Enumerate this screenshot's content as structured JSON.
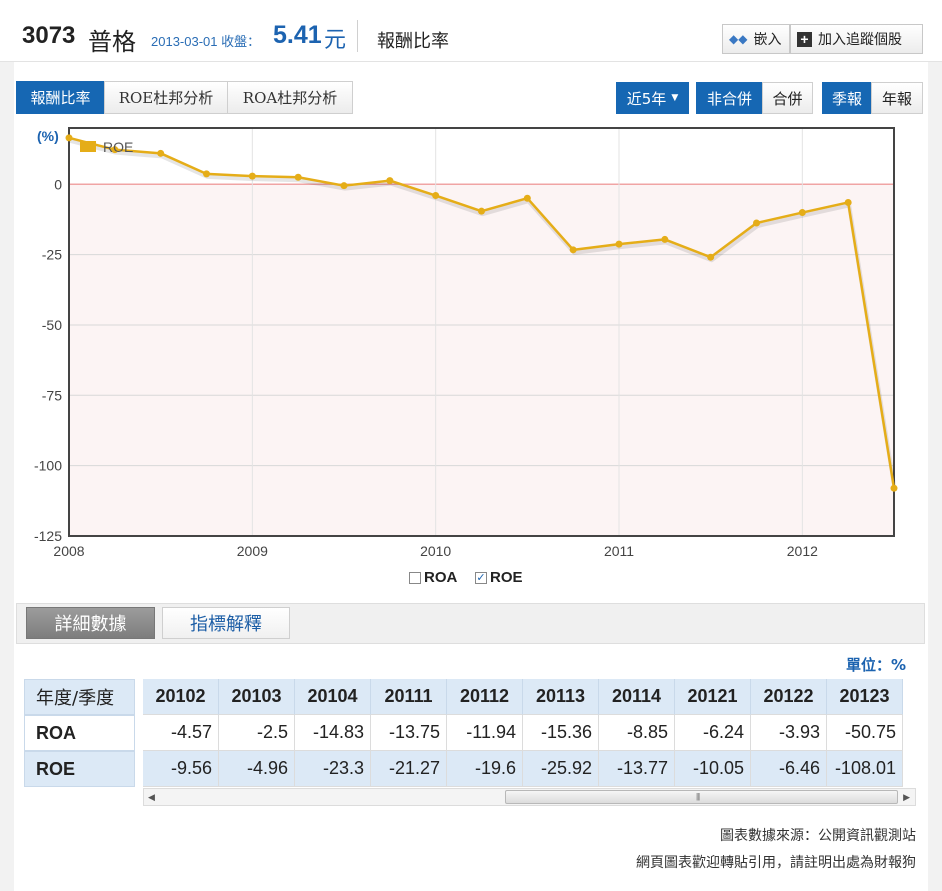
{
  "header": {
    "code": "3073",
    "name": "普格",
    "date_label": "2013-03-01 收盤：",
    "price": "5.41",
    "price_unit": "元",
    "page_title": "報酬比率",
    "embed_label": "嵌入",
    "follow_label": "加入追蹤個股"
  },
  "tabs": [
    "報酬比率",
    "ROE杜邦分析",
    "ROA杜邦分析"
  ],
  "controls": {
    "period": "近5年",
    "non_consolidated": "非合併",
    "consolidated": "合併",
    "quarterly": "季報",
    "annual": "年報"
  },
  "chart_data": {
    "type": "line",
    "ylabel": "(%)",
    "ylim": [
      -125,
      20
    ],
    "yticks": [
      0,
      -25,
      -50,
      -75,
      -100,
      -125
    ],
    "xlim": [
      2008.0,
      2012.5
    ],
    "xticks": [
      "2008",
      "2009",
      "2010",
      "2011",
      "2012"
    ],
    "legend": "top-left",
    "series": [
      {
        "name": "ROE",
        "color": "#e5ad18",
        "x": [
          2008.0,
          2008.25,
          2008.5,
          2008.75,
          2009.0,
          2009.25,
          2009.5,
          2009.75,
          2010.0,
          2010.25,
          2010.5,
          2010.75,
          2011.0,
          2011.25,
          2011.5,
          2011.75,
          2012.0,
          2012.25,
          2012.5
        ],
        "values": [
          16.5,
          12.3,
          11.0,
          3.7,
          2.9,
          2.5,
          -0.5,
          1.3,
          -4.0,
          -9.56,
          -4.96,
          -23.3,
          -21.27,
          -19.6,
          -25.92,
          -13.77,
          -10.05,
          -6.46,
          -108.01
        ]
      }
    ]
  },
  "legend_toggles": {
    "roa": "ROA",
    "roe": "ROE"
  },
  "detail": {
    "detail_button": "詳細數據",
    "explain_button": "指標解釋",
    "unit": "單位：%"
  },
  "table": {
    "corner": "年度/季度",
    "row_labels": [
      "ROA",
      "ROE"
    ],
    "periods": [
      "20102",
      "20103",
      "20104",
      "20111",
      "20112",
      "20113",
      "20114",
      "20121",
      "20122",
      "20123"
    ],
    "roa": [
      "-4.57",
      "-2.5",
      "-14.83",
      "-13.75",
      "-11.94",
      "-15.36",
      "-8.85",
      "-6.24",
      "-3.93",
      "-50.75"
    ],
    "roe": [
      "-9.56",
      "-4.96",
      "-23.3",
      "-21.27",
      "-19.6",
      "-25.92",
      "-13.77",
      "-10.05",
      "-6.46",
      "-108.01"
    ]
  },
  "footer": {
    "source": "圖表數據來源：公開資訊觀測站",
    "note": "網頁圖表歡迎轉貼引用，請註明出處為財報狗"
  }
}
